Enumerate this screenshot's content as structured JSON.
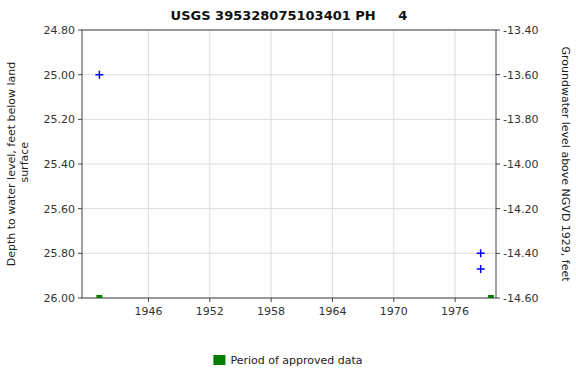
{
  "chart_data": {
    "type": "scatter",
    "title": "USGS 395328075103401 PH     4",
    "ylabel": "Depth to water level, feet below land\n surface",
    "y2label": "Groundwater level above NGVD 1929, feet",
    "xlim": [
      1939.5,
      1980.0
    ],
    "xticks": [
      1946,
      1952,
      1958,
      1964,
      1970,
      1976
    ],
    "ylim": [
      26.0,
      24.8
    ],
    "yticks": [
      {
        "value": 24.8,
        "label": "24.80"
      },
      {
        "value": 25.0,
        "label": "25.00"
      },
      {
        "value": 25.2,
        "label": "25.20"
      },
      {
        "value": 25.4,
        "label": "25.40"
      },
      {
        "value": 25.6,
        "label": "25.60"
      },
      {
        "value": 25.8,
        "label": "25.80"
      },
      {
        "value": 26.0,
        "label": "26.00"
      }
    ],
    "y2lim": [
      -14.6,
      -13.4
    ],
    "y2ticks": [
      {
        "value": -13.4,
        "label": "-13.40"
      },
      {
        "value": -13.6,
        "label": "-13.60"
      },
      {
        "value": -13.8,
        "label": "-13.80"
      },
      {
        "value": -14.0,
        "label": "-14.00"
      },
      {
        "value": -14.2,
        "label": "-14.20"
      },
      {
        "value": -14.4,
        "label": "-14.40"
      },
      {
        "value": -14.6,
        "label": "-14.60"
      }
    ],
    "grid": true,
    "legend": "bottom",
    "series": [
      {
        "color": "#0000ff",
        "marker": "plus",
        "x": [
          1941.2,
          1978.5,
          1978.5
        ],
        "values": [
          25.0,
          25.8,
          25.87
        ]
      },
      {
        "name": "Period of approved data",
        "color": "#008000",
        "marker": "square",
        "x": [
          1941.2,
          1979.5
        ],
        "values": [
          26.0,
          26.0
        ]
      }
    ]
  }
}
